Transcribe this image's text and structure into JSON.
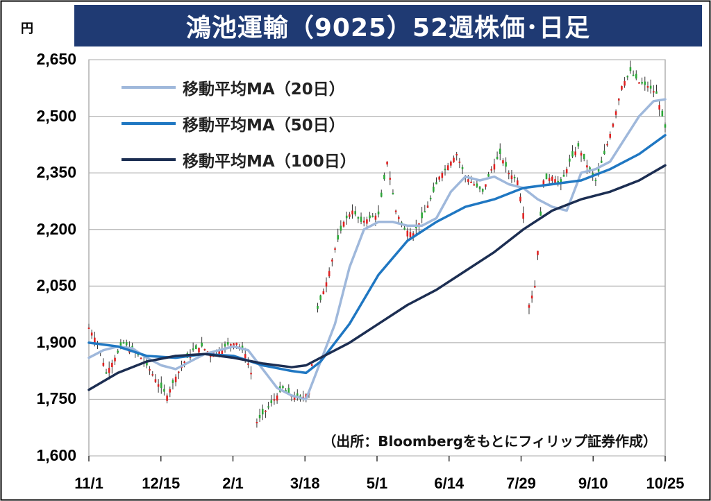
{
  "header": {
    "title": "鴻池運輸（9025）52週株価･日足",
    "unit": "円"
  },
  "legend": [
    {
      "label": "移動平均MA（20日）",
      "color": "#9fb8db"
    },
    {
      "label": "移動平均MA（50日）",
      "color": "#1f77c2"
    },
    {
      "label": "移動平均MA（100日）",
      "color": "#1c2e52"
    }
  ],
  "source": "（出所：Bloombergをもとにフィリップ証券作成）",
  "colors": {
    "up": "#e02020",
    "down": "#2ca838",
    "title_bg": "#1f3a73"
  },
  "chart_data": {
    "type": "line",
    "title": "鴻池運輸（9025）52週株価･日足",
    "ylabel": "円",
    "ylim": [
      1600,
      2650
    ],
    "yticks": [
      "1,600",
      "1,750",
      "1,900",
      "2,050",
      "2,200",
      "2,350",
      "2,500",
      "2,650"
    ],
    "ytick_values": [
      1600,
      1750,
      1900,
      2050,
      2200,
      2350,
      2500,
      2650
    ],
    "xticks": [
      "11/1",
      "12/15",
      "2/1",
      "3/18",
      "5/1",
      "6/14",
      "7/29",
      "9/10",
      "10/25"
    ],
    "grid": true,
    "legend_position": "top-left",
    "price_points": [
      [
        0,
        1940
      ],
      [
        3,
        1900
      ],
      [
        6,
        1820
      ],
      [
        9,
        1860
      ],
      [
        12,
        1900
      ],
      [
        15,
        1880
      ],
      [
        18,
        1860
      ],
      [
        21,
        1830
      ],
      [
        24,
        1790
      ],
      [
        27,
        1760
      ],
      [
        30,
        1810
      ],
      [
        33,
        1850
      ],
      [
        36,
        1880
      ],
      [
        39,
        1890
      ],
      [
        42,
        1870
      ],
      [
        45,
        1880
      ],
      [
        48,
        1895
      ],
      [
        51,
        1900
      ],
      [
        54,
        1870
      ],
      [
        56,
        1820
      ],
      [
        58,
        1690
      ],
      [
        61,
        1720
      ],
      [
        64,
        1750
      ],
      [
        67,
        1780
      ],
      [
        70,
        1760
      ],
      [
        73,
        1750
      ],
      [
        76,
        1770
      ],
      [
        79,
        1990
      ],
      [
        82,
        2060
      ],
      [
        85,
        2150
      ],
      [
        88,
        2220
      ],
      [
        91,
        2250
      ],
      [
        94,
        2220
      ],
      [
        97,
        2230
      ],
      [
        100,
        2240
      ],
      [
        103,
        2380
      ],
      [
        106,
        2250
      ],
      [
        109,
        2200
      ],
      [
        112,
        2190
      ],
      [
        115,
        2230
      ],
      [
        118,
        2280
      ],
      [
        121,
        2340
      ],
      [
        124,
        2370
      ],
      [
        127,
        2400
      ],
      [
        130,
        2340
      ],
      [
        133,
        2320
      ],
      [
        136,
        2300
      ],
      [
        139,
        2360
      ],
      [
        142,
        2400
      ],
      [
        145,
        2350
      ],
      [
        148,
        2330
      ],
      [
        151,
        2200
      ],
      [
        152,
        2000
      ],
      [
        154,
        2050
      ],
      [
        157,
        2330
      ],
      [
        160,
        2340
      ],
      [
        163,
        2320
      ],
      [
        166,
        2380
      ],
      [
        169,
        2420
      ],
      [
        172,
        2370
      ],
      [
        175,
        2330
      ],
      [
        178,
        2400
      ],
      [
        181,
        2480
      ],
      [
        184,
        2580
      ],
      [
        187,
        2620
      ],
      [
        190,
        2590
      ],
      [
        193,
        2580
      ],
      [
        196,
        2560
      ],
      [
        199,
        2470
      ]
    ],
    "series": [
      {
        "name": "移動平均MA（20日）",
        "x": [
          0,
          5,
          10,
          15,
          20,
          25,
          30,
          35,
          40,
          45,
          50,
          55,
          60,
          65,
          70,
          75,
          80,
          85,
          90,
          95,
          100,
          105,
          110,
          115,
          120,
          125,
          130,
          135,
          140,
          145,
          150,
          155,
          160,
          165,
          170,
          175,
          180,
          185,
          190,
          195,
          199
        ],
        "values": [
          1860,
          1880,
          1890,
          1885,
          1860,
          1840,
          1830,
          1850,
          1870,
          1880,
          1890,
          1880,
          1830,
          1780,
          1760,
          1750,
          1850,
          1950,
          2100,
          2200,
          2220,
          2220,
          2210,
          2210,
          2230,
          2300,
          2340,
          2330,
          2340,
          2320,
          2310,
          2280,
          2260,
          2250,
          2350,
          2360,
          2380,
          2440,
          2500,
          2540,
          2545
        ]
      },
      {
        "name": "移動平均MA（50日）",
        "x": [
          0,
          10,
          20,
          30,
          40,
          50,
          60,
          70,
          75,
          80,
          90,
          100,
          110,
          120,
          130,
          140,
          150,
          160,
          170,
          180,
          190,
          199
        ],
        "values": [
          1900,
          1890,
          1865,
          1860,
          1870,
          1865,
          1840,
          1825,
          1820,
          1850,
          1950,
          2080,
          2170,
          2220,
          2260,
          2280,
          2310,
          2320,
          2330,
          2360,
          2400,
          2450
        ]
      },
      {
        "name": "移動平均MA（100日）",
        "x": [
          0,
          10,
          20,
          30,
          40,
          50,
          60,
          70,
          75,
          80,
          90,
          100,
          110,
          120,
          130,
          140,
          150,
          160,
          170,
          180,
          190,
          199
        ],
        "values": [
          1775,
          1820,
          1850,
          1865,
          1870,
          1860,
          1845,
          1835,
          1840,
          1860,
          1900,
          1950,
          2000,
          2040,
          2090,
          2140,
          2200,
          2250,
          2280,
          2300,
          2330,
          2370
        ]
      }
    ]
  }
}
